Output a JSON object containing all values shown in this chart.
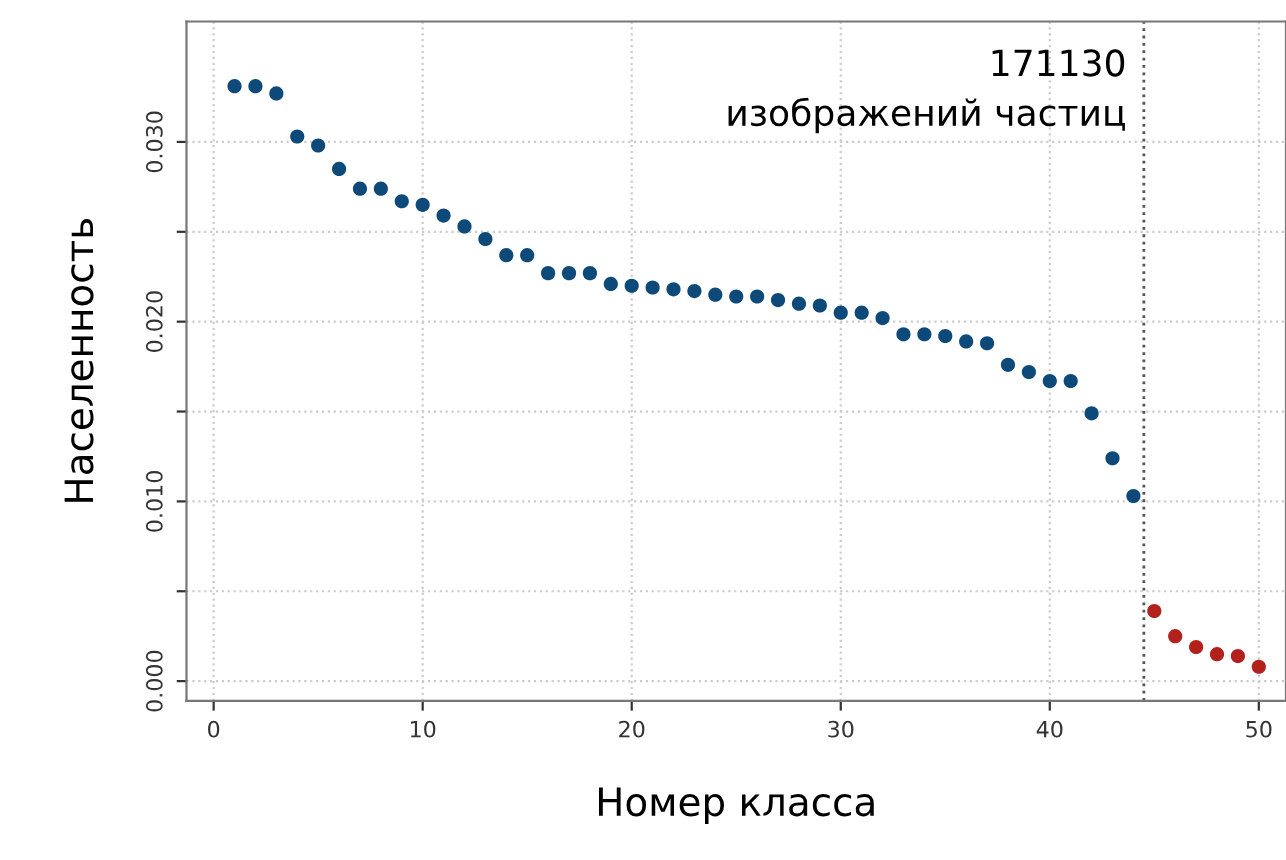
{
  "chart_data": {
    "type": "scatter",
    "xlabel": "Номер класса",
    "ylabel": "Населенность",
    "series": [
      {
        "color": "#0d4a7a",
        "x": [
          1,
          2,
          3,
          4,
          5,
          6,
          7,
          8,
          9,
          10,
          11,
          12,
          13,
          14,
          15,
          16,
          17,
          18,
          19,
          20,
          21,
          22,
          23,
          24,
          25,
          26,
          27,
          28,
          29,
          30,
          31,
          32,
          33,
          34,
          35,
          36,
          37,
          38,
          39,
          40,
          41,
          42,
          43,
          44
        ],
        "values": [
          0.0331,
          0.0331,
          0.0327,
          0.0303,
          0.0298,
          0.0285,
          0.0274,
          0.0274,
          0.0267,
          0.0265,
          0.0259,
          0.0253,
          0.0246,
          0.0237,
          0.0237,
          0.0227,
          0.0227,
          0.0227,
          0.0221,
          0.022,
          0.0219,
          0.0218,
          0.0217,
          0.0215,
          0.0214,
          0.0214,
          0.0212,
          0.021,
          0.0209,
          0.0205,
          0.0205,
          0.0202,
          0.0193,
          0.0193,
          0.0192,
          0.0189,
          0.0188,
          0.0176,
          0.0172,
          0.0167,
          0.0167,
          0.0149,
          0.0124,
          0.0103
        ]
      },
      {
        "color": "#b3211c",
        "x": [
          45,
          46,
          47,
          48,
          49,
          50
        ],
        "values": [
          0.0039,
          0.0025,
          0.0019,
          0.0015,
          0.0014,
          0.0008
        ]
      }
    ],
    "marker": "circle",
    "xlim": [
      -1.3,
      51.3
    ],
    "ylim": [
      -0.0011,
      0.0367
    ],
    "xticks": [
      0,
      10,
      20,
      30,
      40,
      50
    ],
    "yticks": [
      {
        "value": 0.0,
        "label": "0.000"
      },
      {
        "value": 0.005,
        "label": null
      },
      {
        "value": 0.01,
        "label": "0.010"
      },
      {
        "value": 0.015,
        "label": null
      },
      {
        "value": 0.02,
        "label": "0.020"
      },
      {
        "value": 0.025,
        "label": null
      },
      {
        "value": 0.03,
        "label": "0.030"
      }
    ],
    "grid": true,
    "ref_lines": [
      {
        "axis": "x",
        "value": 44.5,
        "color": "#555555",
        "line_style": "dotted"
      }
    ],
    "annotations": [
      "171130\nизображений частиц"
    ]
  }
}
